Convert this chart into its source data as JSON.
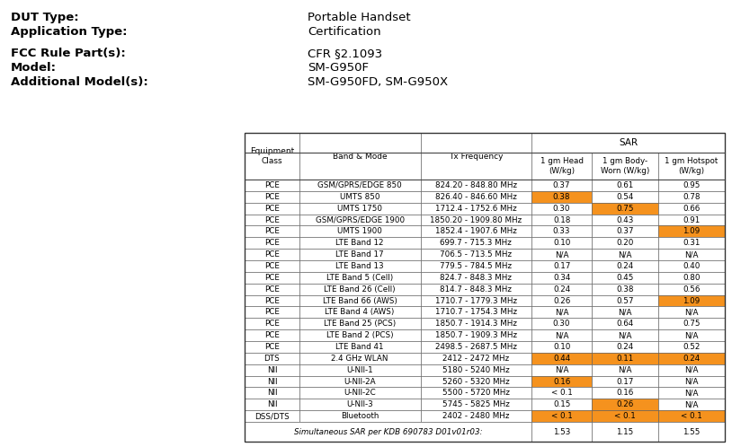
{
  "header_info": [
    [
      "DUT Type:",
      "Portable Handset"
    ],
    [
      "Application Type:",
      "Certification"
    ],
    [
      "FCC Rule Part(s):",
      "CFR §2.1093"
    ],
    [
      "Model:",
      "SM-G950F"
    ],
    [
      "Additional Model(s):",
      "SM-G950FD, SM-G950X"
    ]
  ],
  "table_col_headers": [
    "Equipment\nClass",
    "Band & Mode",
    "Tx Frequency",
    "1 gm Head\n(W/kg)",
    "1 gm Body-\nWorn (W/kg)",
    "1 gm Hotspot\n(W/kg)"
  ],
  "sar_header": "SAR",
  "table_data": [
    [
      "PCE",
      "GSM/GPRS/EDGE 850",
      "824.20 - 848.80 MHz",
      "0.37",
      "0.61",
      "0.95"
    ],
    [
      "PCE",
      "UMTS 850",
      "826.40 - 846.60 MHz",
      "0.38",
      "0.54",
      "0.78"
    ],
    [
      "PCE",
      "UMTS 1750",
      "1712.4 - 1752.6 MHz",
      "0.30",
      "0.75",
      "0.66"
    ],
    [
      "PCE",
      "GSM/GPRS/EDGE 1900",
      "1850.20 - 1909.80 MHz",
      "0.18",
      "0.43",
      "0.91"
    ],
    [
      "PCE",
      "UMTS 1900",
      "1852.4 - 1907.6 MHz",
      "0.33",
      "0.37",
      "1.09"
    ],
    [
      "PCE",
      "LTE Band 12",
      "699.7 - 715.3 MHz",
      "0.10",
      "0.20",
      "0.31"
    ],
    [
      "PCE",
      "LTE Band 17",
      "706.5 - 713.5 MHz",
      "N/A",
      "N/A",
      "N/A"
    ],
    [
      "PCE",
      "LTE Band 13",
      "779.5 - 784.5 MHz",
      "0.17",
      "0.24",
      "0.40"
    ],
    [
      "PCE",
      "LTE Band 5 (Cell)",
      "824.7 - 848.3 MHz",
      "0.34",
      "0.45",
      "0.80"
    ],
    [
      "PCE",
      "LTE Band 26 (Cell)",
      "814.7 - 848.3 MHz",
      "0.24",
      "0.38",
      "0.56"
    ],
    [
      "PCE",
      "LTE Band 66 (AWS)",
      "1710.7 - 1779.3 MHz",
      "0.26",
      "0.57",
      "1.09"
    ],
    [
      "PCE",
      "LTE Band 4 (AWS)",
      "1710.7 - 1754.3 MHz",
      "N/A",
      "N/A",
      "N/A"
    ],
    [
      "PCE",
      "LTE Band 25 (PCS)",
      "1850.7 - 1914.3 MHz",
      "0.30",
      "0.64",
      "0.75"
    ],
    [
      "PCE",
      "LTE Band 2 (PCS)",
      "1850.7 - 1909.3 MHz",
      "N/A",
      "N/A",
      "N/A"
    ],
    [
      "PCE",
      "LTE Band 41",
      "2498.5 - 2687.5 MHz",
      "0.10",
      "0.24",
      "0.52"
    ],
    [
      "DTS",
      "2.4 GHz WLAN",
      "2412 - 2472 MHz",
      "0.44",
      "0.11",
      "0.24"
    ],
    [
      "NII",
      "U-NII-1",
      "5180 - 5240 MHz",
      "N/A",
      "N/A",
      "N/A"
    ],
    [
      "NII",
      "U-NII-2A",
      "5260 - 5320 MHz",
      "0.16",
      "0.17",
      "N/A"
    ],
    [
      "NII",
      "U-NII-2C",
      "5500 - 5720 MHz",
      "< 0.1",
      "0.16",
      "N/A"
    ],
    [
      "NII",
      "U-NII-3",
      "5745 - 5825 MHz",
      "0.15",
      "0.26",
      "N/A"
    ],
    [
      "DSS/DTS",
      "Bluetooth",
      "2402 - 2480 MHz",
      "< 0.1",
      "< 0.1",
      "< 0.1"
    ]
  ],
  "footer_row": [
    "Simultaneous SAR per KDB 690783 D01v01r03:",
    "1.53",
    "1.15",
    "1.55"
  ],
  "orange_cells": [
    [
      1,
      3
    ],
    [
      2,
      4
    ],
    [
      4,
      5
    ],
    [
      10,
      5
    ],
    [
      15,
      3
    ],
    [
      15,
      4
    ],
    [
      15,
      5
    ],
    [
      17,
      3
    ],
    [
      19,
      4
    ],
    [
      20,
      3
    ],
    [
      20,
      4
    ],
    [
      20,
      5
    ]
  ],
  "orange_color": "#F5921E",
  "border_color": "#555555",
  "text_color": "#000000",
  "bold_color": "#000000",
  "fig_width": 8.14,
  "fig_height": 4.98,
  "dpi": 100
}
